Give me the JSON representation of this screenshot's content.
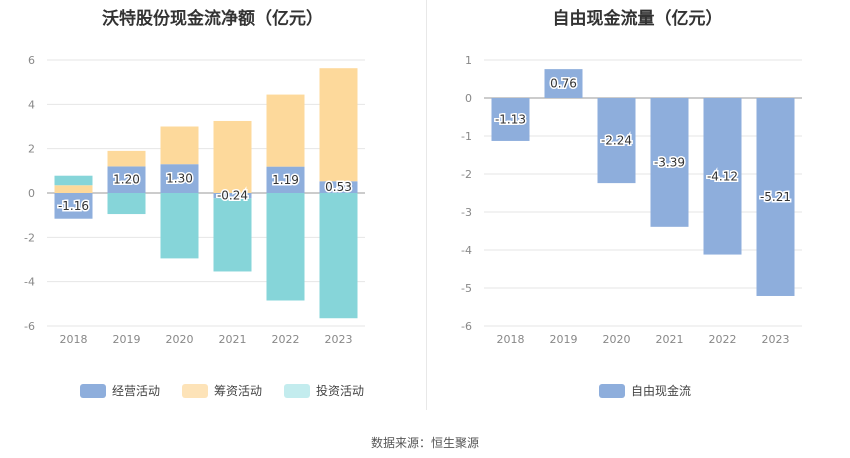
{
  "chart_data": [
    {
      "type": "bar",
      "title": "沃特股份现金流净额（亿元）",
      "categories": [
        "2018",
        "2019",
        "2020",
        "2021",
        "2022",
        "2023"
      ],
      "ylim": [
        -6,
        6
      ],
      "yticks": [
        6,
        4,
        2,
        0,
        -2,
        -4,
        -6
      ],
      "stacked": true,
      "series": [
        {
          "name": "经营活动",
          "color": "#8eaedc",
          "values": [
            -1.16,
            1.2,
            1.3,
            -0.24,
            1.19,
            0.53
          ]
        },
        {
          "name": "筹资活动",
          "color": "#fdd99b",
          "values": [
            0.35,
            0.7,
            1.7,
            3.25,
            3.25,
            5.1
          ]
        },
        {
          "name": "投资活动",
          "color": "#86d5d9",
          "values": [
            0.43,
            -0.95,
            -2.95,
            -3.3,
            -4.85,
            -5.65
          ]
        }
      ],
      "data_labels": [
        "-1.16",
        "1.20",
        "1.30",
        "-0.24",
        "1.19",
        "0.53"
      ],
      "legend_position": "bottom",
      "grid": true
    },
    {
      "type": "bar",
      "title": "自由现金流量（亿元）",
      "categories": [
        "2018",
        "2019",
        "2020",
        "2021",
        "2022",
        "2023"
      ],
      "ylim": [
        -6,
        1
      ],
      "yticks": [
        1,
        0,
        -1,
        -2,
        -3,
        -4,
        -5,
        -6
      ],
      "series": [
        {
          "name": "自由现金流",
          "color": "#8eaedc",
          "values": [
            -1.13,
            0.76,
            -2.24,
            -3.39,
            -4.12,
            -5.21
          ]
        }
      ],
      "data_labels": [
        "-1.13",
        "0.76",
        "-2.24",
        "-3.39",
        "-4.12",
        "-5.21"
      ],
      "legend_position": "bottom",
      "grid": true
    }
  ],
  "legend_left": [
    {
      "label": "经营活动",
      "color": "#8eaedc"
    },
    {
      "label": "筹资活动",
      "color": "#fde3b8"
    },
    {
      "label": "投资活动",
      "color": "#c3ecee"
    }
  ],
  "legend_right": [
    {
      "label": "自由现金流",
      "color": "#8eaedc"
    }
  ],
  "source": "数据来源：恒生聚源"
}
